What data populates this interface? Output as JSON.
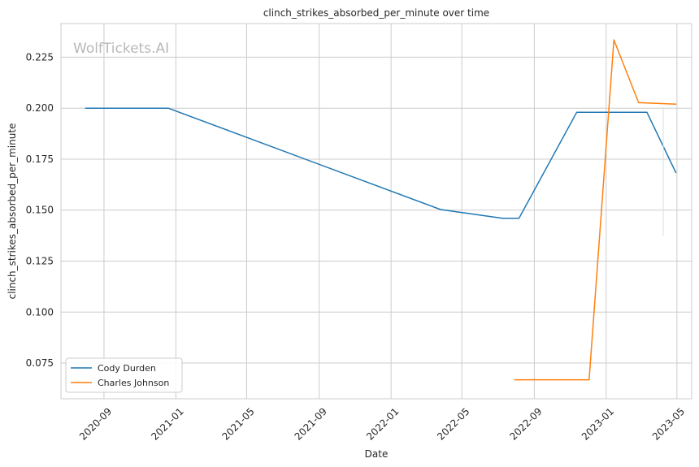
{
  "chart_data": {
    "type": "line",
    "title": "clinch_strikes_absorbed_per_minute over time",
    "xlabel": "Date",
    "ylabel": "clinch_strikes_absorbed_per_minute",
    "watermark": "WolfTickets.AI",
    "x_ticks": [
      "2020-09",
      "2021-01",
      "2021-05",
      "2021-09",
      "2022-01",
      "2022-05",
      "2022-09",
      "2023-01",
      "2023-05"
    ],
    "y_ticks": [
      "0.075",
      "0.100",
      "0.125",
      "0.150",
      "0.175",
      "0.200",
      "0.225"
    ],
    "xlim": [
      "2020-06-20",
      "2023-05-26"
    ],
    "ylim": [
      0.0575,
      0.2415
    ],
    "grid": true,
    "legend_position": "lower-left",
    "series": [
      {
        "name": "Cody Durden",
        "color": "#1f77b4",
        "points": [
          [
            "2020-08-01",
            0.2
          ],
          [
            "2020-12-19",
            0.2
          ],
          [
            "2022-03-26",
            0.1503
          ],
          [
            "2022-07-09",
            0.146
          ],
          [
            "2022-08-06",
            0.146
          ],
          [
            "2022-11-12",
            0.198
          ],
          [
            "2023-03-11",
            0.198
          ],
          [
            "2023-04-29",
            0.1685
          ]
        ]
      },
      {
        "name": "Charles Johnson",
        "color": "#ff7f0e",
        "points": [
          [
            "2022-07-30",
            0.0668
          ],
          [
            "2022-12-03",
            0.0668
          ],
          [
            "2023-01-14",
            0.2335
          ],
          [
            "2023-02-25",
            0.2027
          ],
          [
            "2023-04-29",
            0.202
          ]
        ]
      }
    ]
  }
}
